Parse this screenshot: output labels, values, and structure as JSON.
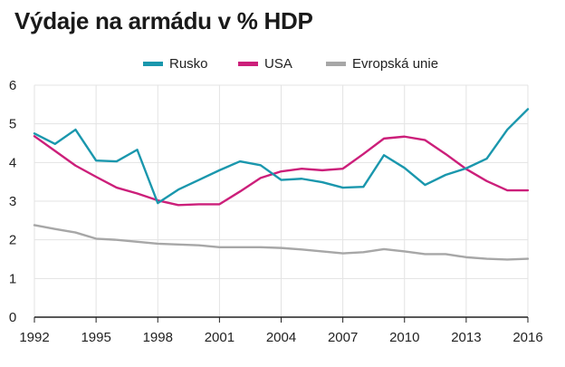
{
  "title": "Výdaje na armádu v % HDP",
  "chart_data": {
    "type": "line",
    "x": [
      1992,
      1993,
      1994,
      1995,
      1996,
      1997,
      1998,
      1999,
      2000,
      2001,
      2002,
      2003,
      2004,
      2005,
      2006,
      2007,
      2008,
      2009,
      2010,
      2011,
      2012,
      2013,
      2014,
      2015,
      2016
    ],
    "series": [
      {
        "name": "Rusko",
        "color": "#1a97ad",
        "values": [
          4.75,
          4.48,
          4.85,
          4.05,
          4.03,
          4.33,
          2.95,
          3.3,
          3.55,
          3.8,
          4.03,
          3.93,
          3.55,
          3.58,
          3.49,
          3.35,
          3.37,
          4.19,
          3.86,
          3.42,
          3.68,
          3.85,
          4.1,
          4.85,
          5.38
        ]
      },
      {
        "name": "USA",
        "color": "#cc1f7a",
        "values": [
          4.68,
          4.3,
          3.92,
          3.63,
          3.35,
          3.2,
          3.02,
          2.9,
          2.92,
          2.92,
          3.25,
          3.6,
          3.77,
          3.84,
          3.8,
          3.84,
          4.22,
          4.62,
          4.67,
          4.58,
          4.22,
          3.83,
          3.52,
          3.28,
          3.28
        ]
      },
      {
        "name": "Evropská unie",
        "color": "#a7a7a7",
        "values": [
          2.38,
          2.28,
          2.19,
          2.03,
          2.0,
          1.95,
          1.9,
          1.88,
          1.86,
          1.81,
          1.81,
          1.81,
          1.79,
          1.75,
          1.7,
          1.65,
          1.68,
          1.76,
          1.7,
          1.63,
          1.63,
          1.55,
          1.51,
          1.49,
          1.51
        ]
      }
    ],
    "x_ticks": [
      1992,
      1995,
      1998,
      2001,
      2004,
      2007,
      2010,
      2013,
      2016
    ],
    "y_ticks": [
      0,
      1,
      2,
      3,
      4,
      5,
      6
    ],
    "xlim": [
      1992,
      2016
    ],
    "ylim": [
      0,
      6
    ],
    "grid": true,
    "legend_position": "top-center",
    "colors": {
      "grid": "#e3e3e3",
      "baseline": "#222222"
    }
  }
}
